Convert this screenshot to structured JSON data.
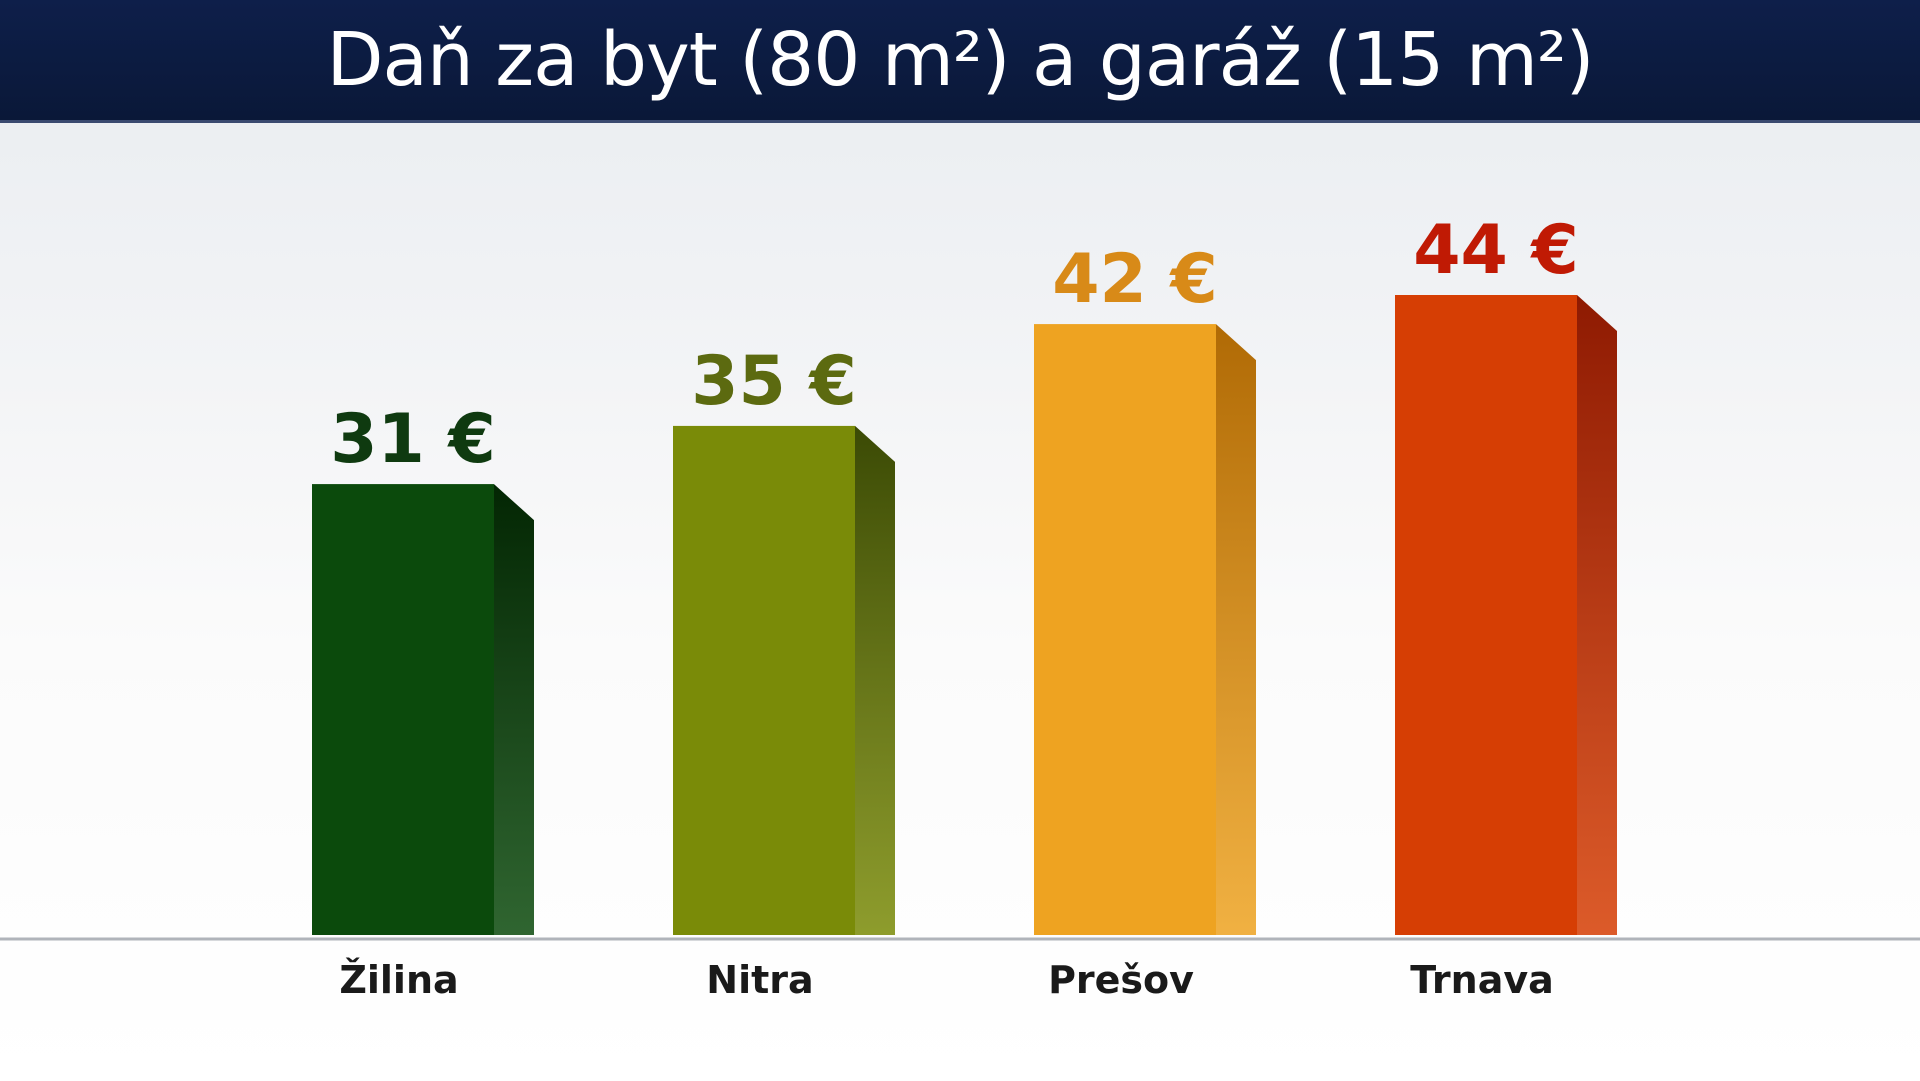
{
  "chart_data": {
    "type": "bar",
    "title": "Daň za byt (80 m²) a garáž (15 m²)",
    "categories": [
      "Žilina",
      "Nitra",
      "Prešov",
      "Trnava"
    ],
    "values": [
      31,
      35,
      42,
      44
    ],
    "value_labels": [
      "31 €",
      "35 €",
      "42 €",
      "44 €"
    ],
    "unit": "€",
    "ylim": [
      0,
      44
    ],
    "grid": false,
    "legend": "none",
    "colors": [
      {
        "front": "#0b4a0c",
        "side": "#032603",
        "label": "#0f3a10"
      },
      {
        "front": "#7a8b08",
        "side": "#3b4a05",
        "label": "#5c6a10"
      },
      {
        "front": "#eea321",
        "side": "#b06a05",
        "label": "#d88a18"
      },
      {
        "front": "#d63e04",
        "side": "#8e1a02",
        "label": "#c01a04"
      }
    ]
  }
}
